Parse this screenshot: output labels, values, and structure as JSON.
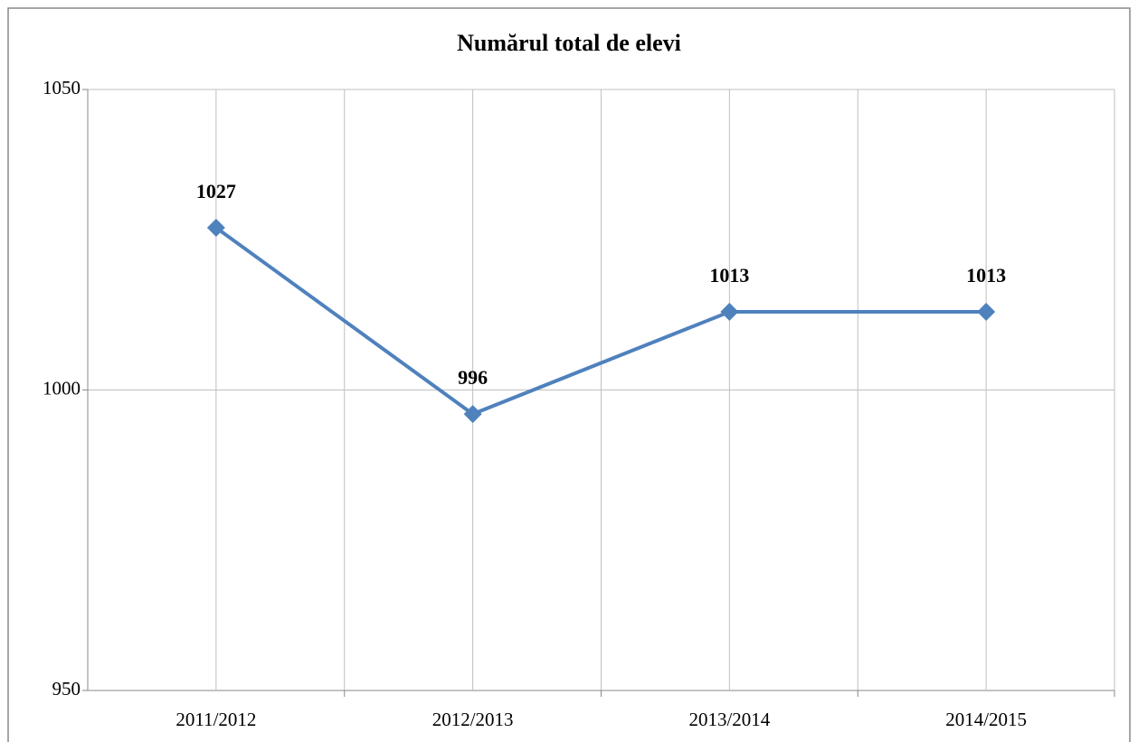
{
  "chart_data": {
    "type": "line",
    "title": "Numărul total de elevi",
    "categories": [
      "2011/2012",
      "2012/2013",
      "2013/2014",
      "2014/2015"
    ],
    "values": [
      1027,
      996,
      1013,
      1013
    ],
    "color": "#4f81bd",
    "ylim": [
      950,
      1050
    ],
    "yticks": [
      950,
      1000,
      1050
    ],
    "grid": true
  }
}
